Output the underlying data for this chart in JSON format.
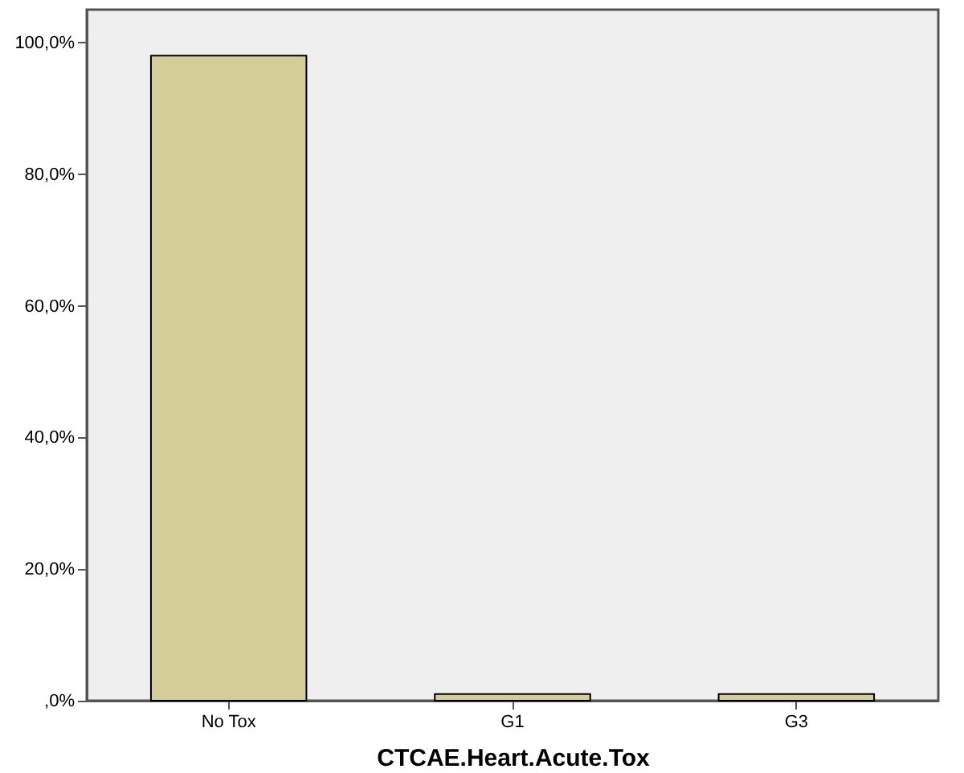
{
  "chart_data": {
    "type": "bar",
    "xlabel": "CTCAE.Heart.Acute.Tox",
    "categories": [
      "No Tox",
      "G1",
      "G3"
    ],
    "values": [
      98.0,
      1.0,
      1.0
    ],
    "color": "#d3ce97",
    "ylim": [
      0,
      105
    ],
    "yticks": [
      {
        "value": 0,
        "label": ",0%"
      },
      {
        "value": 20,
        "label": "20,0%"
      },
      {
        "value": 40,
        "label": "40,0%"
      },
      {
        "value": 60,
        "label": "60,0%"
      },
      {
        "value": 80,
        "label": "80,0%"
      },
      {
        "value": 100,
        "label": "100,0%"
      }
    ],
    "grid": false
  }
}
